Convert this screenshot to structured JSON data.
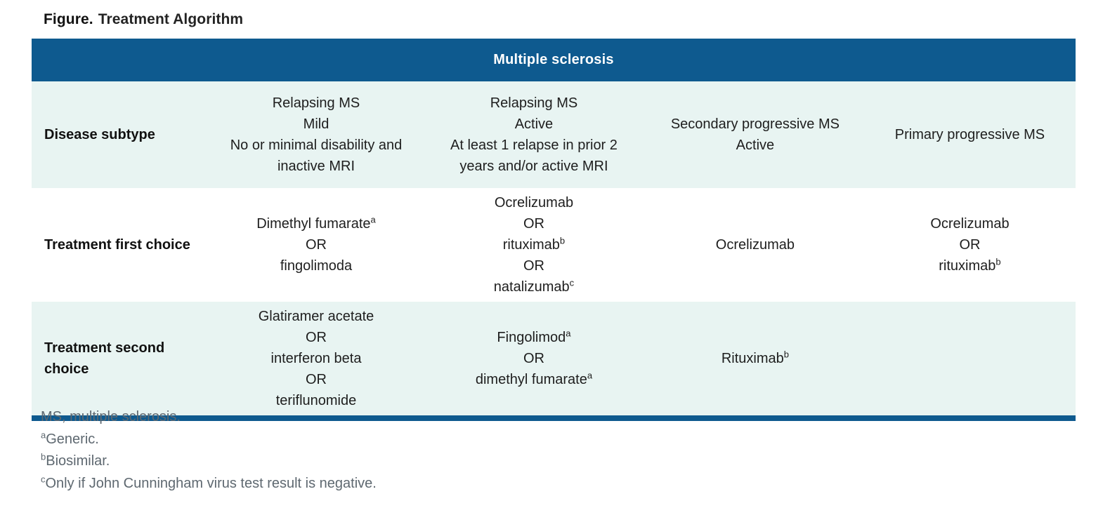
{
  "title": {
    "label": "Figure.",
    "text": "Treatment Algorithm"
  },
  "table": {
    "header": "Multiple sclerosis",
    "rows": [
      {
        "label": "Disease subtype",
        "cells": [
          [
            "Relapsing MS",
            "Mild",
            "No or minimal disability and",
            "inactive MRI"
          ],
          [
            "Relapsing MS",
            "Active",
            "At least 1 relapse in prior 2",
            "years and/or active MRI"
          ],
          [
            "Secondary progressive MS",
            "Active"
          ],
          [
            "Primary progressive MS"
          ]
        ]
      },
      {
        "label": "Treatment first choice",
        "cells": [
          [
            "Dimethyl fumarate^a",
            "OR",
            "fingolimoda"
          ],
          [
            "Ocrelizumab",
            "OR",
            "rituximab^b",
            "OR",
            "natalizumab^c"
          ],
          [
            "Ocrelizumab"
          ],
          [
            "Ocrelizumab",
            "OR",
            "rituximab^b"
          ]
        ]
      },
      {
        "label": "Treatment second choice",
        "cells": [
          [
            "Glatiramer acetate",
            "OR",
            "interferon beta",
            "OR",
            "teriflunomide"
          ],
          [
            "Fingolimod^a",
            "OR",
            "dimethyl fumarate^a"
          ],
          [
            "Rituximab^b"
          ],
          []
        ]
      }
    ]
  },
  "footnotes": [
    "MS, multiple sclerosis.",
    "^aGeneric.",
    "^bBiosimilar.",
    "^cOnly if John Cunningham virus test result is negative."
  ],
  "colors": {
    "header_blue": "#0E5A8F",
    "row_tint": "#E8F4F2",
    "footnote_gray": "#5E6870"
  }
}
